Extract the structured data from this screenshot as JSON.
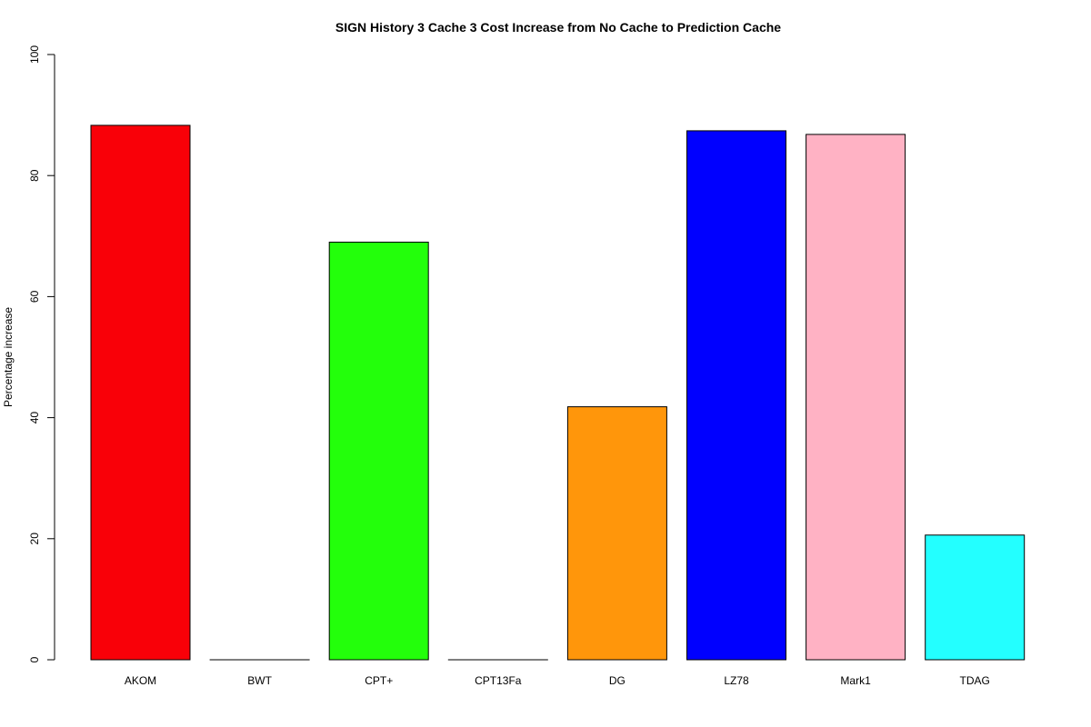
{
  "chart_data": {
    "type": "bar",
    "title": "SIGN  History  3  Cache  3  Cost Increase from No Cache to Prediction Cache",
    "xlabel": "",
    "ylabel": "Percentage increase",
    "categories": [
      "AKOM",
      "BWT",
      "CPT+",
      "CPT13Fa",
      "DG",
      "LZ78",
      "Mark1",
      "TDAG"
    ],
    "values": [
      88.3,
      0,
      69.0,
      0,
      41.8,
      87.4,
      86.8,
      20.6
    ],
    "colors": [
      "#f90008",
      "#ff0000",
      "#23ff0b",
      "#00a000",
      "#ff960b",
      "#0000ff",
      "#ffb2c4",
      "#23ffff"
    ],
    "ylim": [
      0,
      100
    ],
    "yticks": [
      0,
      20,
      40,
      60,
      80,
      100
    ],
    "grid": false,
    "legend": "none"
  }
}
